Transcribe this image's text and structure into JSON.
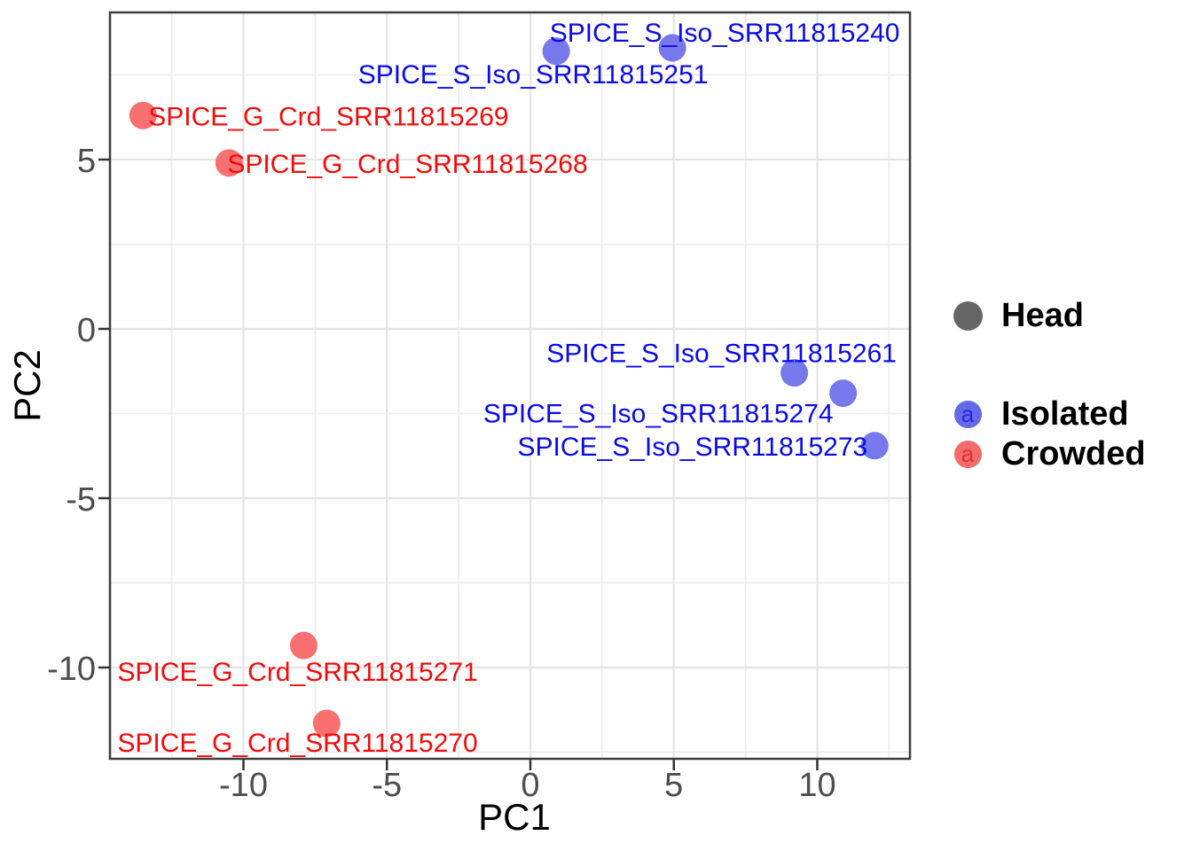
{
  "chart_data": {
    "type": "scatter",
    "title": "",
    "xlabel": "PC1",
    "ylabel": "PC2",
    "xlim": [
      -14.65,
      13.25
    ],
    "ylim": [
      -12.7,
      9.35
    ],
    "x_ticks": [
      -10,
      -5,
      0,
      5,
      10
    ],
    "y_ticks": [
      -10,
      -5,
      0,
      5
    ],
    "x_minor_gridlines": [
      -12.5,
      -7.5,
      -2.5,
      2.5,
      7.5,
      12.5
    ],
    "y_minor_gridlines": [
      -12.5,
      -7.5,
      -2.5,
      2.5,
      7.5
    ],
    "grid": true,
    "legend_position": "right",
    "series": [
      {
        "name": "Isolated",
        "point_color": "#7678EC",
        "label_color": "#0B0BE8",
        "points": [
          {
            "label": "SPICE_S_Iso_SRR11815251",
            "x": 0.9,
            "y": 8.2
          },
          {
            "label": "SPICE_S_Iso_SRR11815240",
            "x": 4.95,
            "y": 8.3
          },
          {
            "label": "SPICE_S_Iso_SRR11815261",
            "x": 9.2,
            "y": -1.3
          },
          {
            "label": "SPICE_S_Iso_SRR11815274",
            "x": 10.9,
            "y": -1.9
          },
          {
            "label": "SPICE_S_Iso_SRR11815273",
            "x": 12.0,
            "y": -3.45
          }
        ]
      },
      {
        "name": "Crowded",
        "point_color": "#F97070",
        "label_color": "#F40B0B",
        "points": [
          {
            "label": "SPICE_G_Crd_SRR11815269",
            "x": -13.5,
            "y": 6.3
          },
          {
            "label": "SPICE_G_Crd_SRR11815268",
            "x": -10.5,
            "y": 4.9
          },
          {
            "label": "SPICE_G_Crd_SRR11815271",
            "x": -7.9,
            "y": -9.35
          },
          {
            "label": "SPICE_G_Crd_SRR11815270",
            "x": -7.1,
            "y": -11.65
          }
        ]
      }
    ],
    "legend": {
      "groups": [
        {
          "items": [
            {
              "label": "Head",
              "marker": "dot",
              "color": "#666666"
            }
          ]
        },
        {
          "items": [
            {
              "label": "Isolated",
              "marker": "a",
              "fill": "#6469EA",
              "text_color": "#2929D4"
            },
            {
              "label": "Crowded",
              "marker": "a",
              "fill": "#F56A6A",
              "text_color": "#DC3434"
            }
          ]
        }
      ]
    },
    "colors": {
      "axis_text": "#4D4D4D",
      "axis_title": "#000000",
      "grid_major": "#E4E4E4",
      "grid_minor": "#EDEDED",
      "panel_border": "#3D3D3D",
      "tick_mark": "#333333",
      "background": "#FFFFFF"
    }
  }
}
